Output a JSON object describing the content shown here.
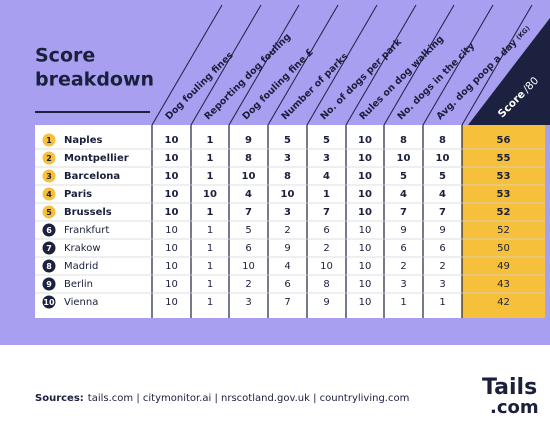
{
  "title": [
    "Score",
    "breakdown"
  ],
  "table": {
    "headers": [
      "Dog fouling fines",
      "Reporting dog fouling",
      "Dog fouling fine £",
      "Number of parks",
      "No. of dogs per park",
      "Rules on dog walking",
      "No. dogs in the city",
      "Avg. dog poop a day"
    ],
    "header_unit": "(KG)",
    "score_header": {
      "label": "Score",
      "suffix": "/80"
    },
    "rows": [
      [
        "1",
        "Naples",
        "10",
        "1",
        "9",
        "5",
        "5",
        "10",
        "8",
        "8",
        "56"
      ],
      [
        "2",
        "Montpellier",
        "10",
        "1",
        "8",
        "3",
        "3",
        "10",
        "10",
        "10",
        "55"
      ],
      [
        "3",
        "Barcelona",
        "10",
        "1",
        "10",
        "8",
        "4",
        "10",
        "5",
        "5",
        "53"
      ],
      [
        "4",
        "Paris",
        "10",
        "10",
        "4",
        "10",
        "1",
        "10",
        "4",
        "4",
        "53"
      ],
      [
        "5",
        "Brussels",
        "10",
        "1",
        "7",
        "3",
        "7",
        "10",
        "7",
        "7",
        "52"
      ],
      [
        "6",
        "Frankfurt",
        "10",
        "1",
        "5",
        "2",
        "6",
        "10",
        "9",
        "9",
        "52"
      ],
      [
        "7",
        "Krakow",
        "10",
        "1",
        "6",
        "9",
        "2",
        "10",
        "6",
        "6",
        "50"
      ],
      [
        "8",
        "Madrid",
        "10",
        "1",
        "10",
        "4",
        "10",
        "10",
        "2",
        "2",
        "49"
      ],
      [
        "9",
        "Berlin",
        "10",
        "1",
        "2",
        "6",
        "8",
        "10",
        "3",
        "3",
        "43"
      ],
      [
        "10",
        "Vienna",
        "10",
        "1",
        "3",
        "7",
        "9",
        "10",
        "1",
        "1",
        "42"
      ]
    ]
  },
  "sources": {
    "label": "Sources:",
    "text": "tails.com | citymonitor.ai | nrscotland.gov.uk | countryliving.com"
  },
  "logo": {
    "name": "Tails",
    "suffix": ".com"
  }
}
